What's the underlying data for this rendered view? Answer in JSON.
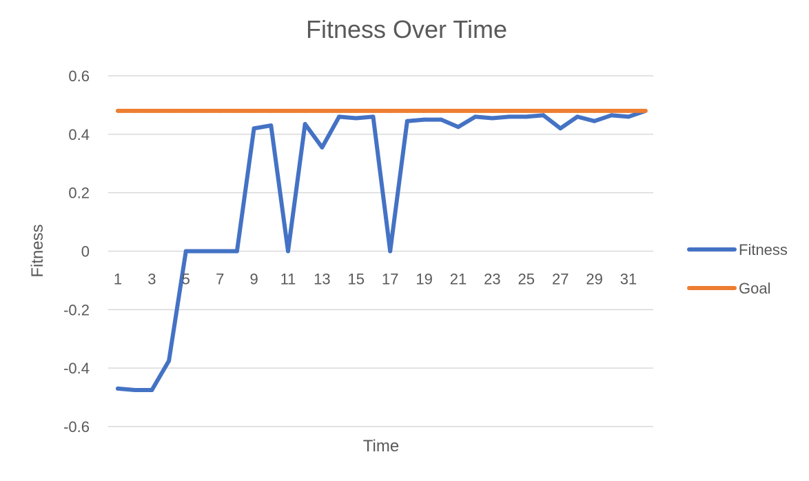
{
  "chart_data": {
    "type": "line",
    "title": "Fitness Over Time",
    "xlabel": "Time",
    "ylabel": "Fitness",
    "x": [
      1,
      2,
      3,
      4,
      5,
      6,
      7,
      8,
      9,
      10,
      11,
      12,
      13,
      14,
      15,
      16,
      17,
      18,
      19,
      20,
      21,
      22,
      23,
      24,
      25,
      26,
      27,
      28,
      29,
      30,
      31,
      32
    ],
    "xtick_labels": [
      "1",
      "3",
      "5",
      "7",
      "9",
      "11",
      "13",
      "15",
      "17",
      "19",
      "21",
      "23",
      "25",
      "27",
      "29",
      "31"
    ],
    "ylim": [
      -0.6,
      0.6
    ],
    "yticks": [
      0.6,
      0.4,
      0.2,
      0,
      -0.2,
      -0.4,
      -0.6
    ],
    "ytick_labels": [
      "0.6",
      "0.4",
      "0.2",
      "0",
      "-0.2",
      "-0.4",
      "-0.6"
    ],
    "grid": "horizontal",
    "legend_position": "right",
    "series": [
      {
        "name": "Fitness",
        "color": "#4472C4",
        "values": [
          -0.47,
          -0.475,
          -0.475,
          -0.375,
          0,
          0,
          0,
          0,
          0.42,
          0.43,
          0,
          0.435,
          0.355,
          0.46,
          0.455,
          0.46,
          0,
          0.445,
          0.45,
          0.45,
          0.425,
          0.46,
          0.455,
          0.46,
          0.46,
          0.465,
          0.42,
          0.46,
          0.445,
          0.465,
          0.46,
          0.48
        ]
      },
      {
        "name": "Goal",
        "color": "#ED7D31",
        "values": [
          0.48,
          0.48,
          0.48,
          0.48,
          0.48,
          0.48,
          0.48,
          0.48,
          0.48,
          0.48,
          0.48,
          0.48,
          0.48,
          0.48,
          0.48,
          0.48,
          0.48,
          0.48,
          0.48,
          0.48,
          0.48,
          0.48,
          0.48,
          0.48,
          0.48,
          0.48,
          0.48,
          0.48,
          0.48,
          0.48,
          0.48,
          0.48
        ]
      }
    ]
  }
}
